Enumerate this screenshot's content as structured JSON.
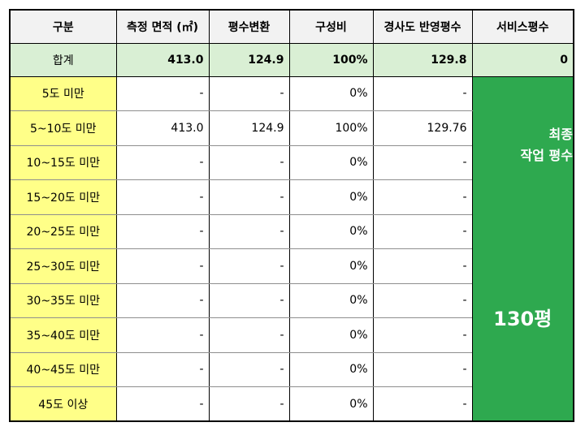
{
  "headers": [
    "구분",
    "측정 면적 (㎡)",
    "평수변환",
    "구성비",
    "경사도 반영평수",
    "서비스평수"
  ],
  "total": {
    "label": "합계",
    "area": "413.0",
    "pyeong": "124.9",
    "ratio": "100%",
    "slope": "129.8",
    "service": "0"
  },
  "rows": [
    {
      "label": "5도 미만",
      "area": "-",
      "pyeong": "-",
      "ratio": "0%",
      "slope": "-"
    },
    {
      "label": "5~10도 미만",
      "area": "413.0",
      "pyeong": "124.9",
      "ratio": "100%",
      "slope": "129.76"
    },
    {
      "label": "10~15도 미만",
      "area": "-",
      "pyeong": "-",
      "ratio": "0%",
      "slope": "-"
    },
    {
      "label": "15~20도 미만",
      "area": "-",
      "pyeong": "-",
      "ratio": "0%",
      "slope": "-"
    },
    {
      "label": "20~25도 미만",
      "area": "-",
      "pyeong": "-",
      "ratio": "0%",
      "slope": "-"
    },
    {
      "label": "25~30도 미만",
      "area": "-",
      "pyeong": "-",
      "ratio": "0%",
      "slope": "-"
    },
    {
      "label": "30~35도 미만",
      "area": "-",
      "pyeong": "-",
      "ratio": "0%",
      "slope": "-"
    },
    {
      "label": "35~40도 미만",
      "area": "-",
      "pyeong": "-",
      "ratio": "0%",
      "slope": "-"
    },
    {
      "label": "40~45도 미만",
      "area": "-",
      "pyeong": "-",
      "ratio": "0%",
      "slope": "-"
    },
    {
      "label": "45도 이상",
      "area": "-",
      "pyeong": "-",
      "ratio": "0%",
      "slope": "-"
    }
  ],
  "final": {
    "label_line1": "최종",
    "label_line2": "작업 평수",
    "value": "130평"
  },
  "colors": {
    "header_bg": "#f2f2f2",
    "total_bg": "#d9efd4",
    "label_bg": "#ffff88",
    "final_bg": "#2ea94f"
  }
}
